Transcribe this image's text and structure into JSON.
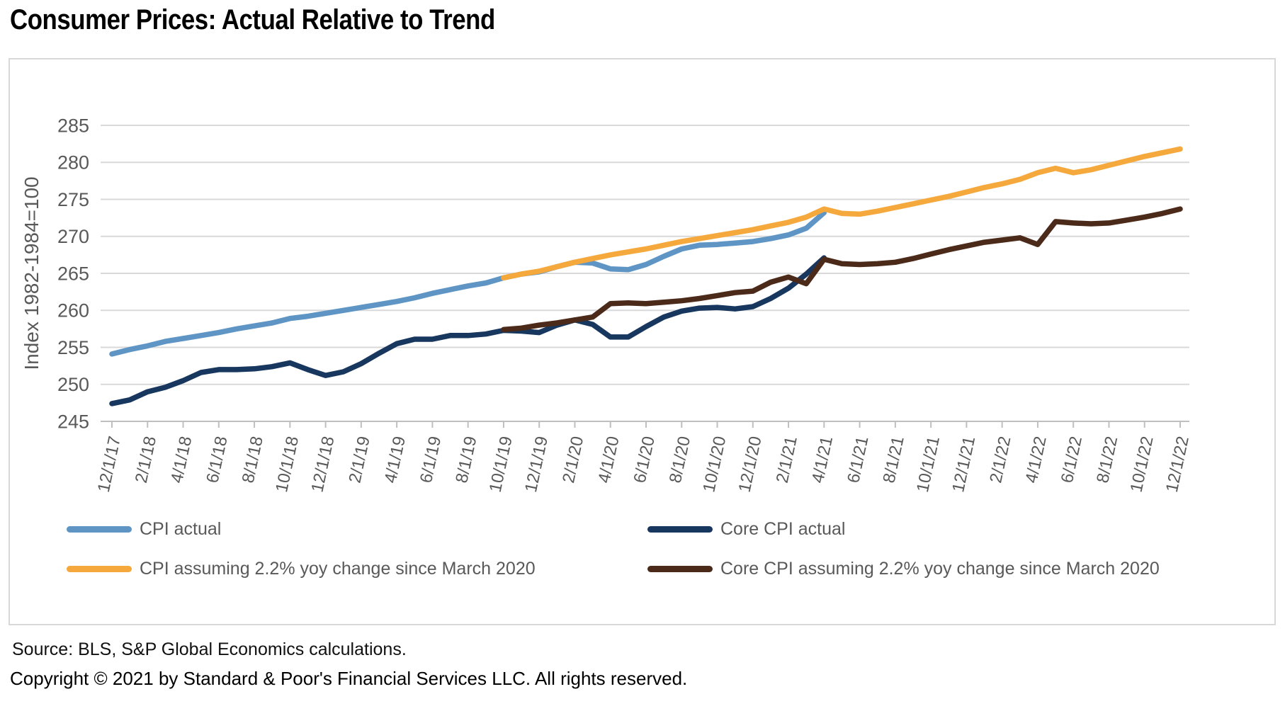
{
  "title": "Consumer Prices: Actual Relative to Trend",
  "footer": {
    "source": "Source: BLS, S&P Global Economics calculations.",
    "copyright": "Copyright © 2021 by Standard & Poor's Financial Services LLC. All rights reserved."
  },
  "colors": {
    "cpi_actual": "#5E95C5",
    "core_cpi_actual": "#17375E",
    "cpi_trend": "#F5A93D",
    "core_cpi_trend": "#4C2A19",
    "gridline": "#D9D9D9",
    "axis": "#BFBFBF",
    "axis_text": "#595959",
    "panel_border": "#D8D8D8"
  },
  "chart_data": {
    "type": "line",
    "title": "",
    "xlabel": "",
    "ylabel": "Index 1982-1984=100",
    "ylim": [
      245,
      285
    ],
    "ytick_step": 5,
    "yticks": [
      245,
      250,
      255,
      260,
      265,
      270,
      275,
      280,
      285
    ],
    "grid": true,
    "legend_position": "bottom",
    "months_total": 61,
    "x_frequency": "monthly, Dec 2017 - Dec 2022; labels every 2 months",
    "x_labels": [
      "12/1/17",
      "2/1/18",
      "4/1/18",
      "6/1/18",
      "8/1/18",
      "10/1/18",
      "12/1/18",
      "2/1/19",
      "4/1/19",
      "6/1/19",
      "8/1/19",
      "10/1/19",
      "12/1/19",
      "2/1/20",
      "4/1/20",
      "6/1/20",
      "8/1/20",
      "10/1/20",
      "12/1/20",
      "2/1/21",
      "4/1/21",
      "6/1/21",
      "8/1/21",
      "10/1/21",
      "12/1/21",
      "2/1/22",
      "4/1/22",
      "6/1/22",
      "8/1/22",
      "10/1/22",
      "12/1/22"
    ],
    "series": [
      {
        "id": "cpi-actual",
        "name": "CPI actual",
        "color": "#5E95C5",
        "start_month": 0,
        "values": [
          254.1,
          254.7,
          255.2,
          255.8,
          256.2,
          256.6,
          257.0,
          257.5,
          257.9,
          258.3,
          258.9,
          259.2,
          259.6,
          260.0,
          260.4,
          260.8,
          261.2,
          261.7,
          262.3,
          262.8,
          263.3,
          263.7,
          264.4,
          264.9,
          265.2,
          265.9,
          266.5,
          266.4,
          265.6,
          265.5,
          266.2,
          267.3,
          268.3,
          268.8,
          268.9,
          269.1,
          269.3,
          269.7,
          270.2,
          271.1,
          273.2
        ]
      },
      {
        "id": "core-cpi-actual",
        "name": "Core CPI actual",
        "color": "#17375E",
        "start_month": 0,
        "values": [
          247.4,
          247.9,
          249.0,
          249.6,
          250.5,
          251.6,
          252.0,
          252.0,
          252.1,
          252.4,
          252.9,
          252.0,
          251.2,
          251.7,
          252.8,
          254.2,
          255.5,
          256.1,
          256.1,
          256.6,
          256.6,
          256.8,
          257.3,
          257.2,
          257.0,
          258.0,
          258.7,
          258.1,
          256.4,
          256.4,
          257.8,
          259.1,
          259.9,
          260.3,
          260.4,
          260.2,
          260.5,
          261.6,
          263.0,
          264.9,
          267.1
        ]
      },
      {
        "id": "cpi-trend",
        "name": "CPI assuming 2.2% yoy change since March 2020",
        "color": "#F5A93D",
        "start_month": 22,
        "values": [
          264.4,
          264.9,
          265.3,
          265.9,
          266.5,
          267.0,
          267.5,
          267.9,
          268.3,
          268.8,
          269.3,
          269.7,
          270.1,
          270.5,
          270.9,
          271.4,
          271.9,
          272.6,
          273.7,
          273.1,
          273.0,
          273.4,
          273.9,
          274.4,
          274.9,
          275.4,
          276.0,
          276.6,
          277.1,
          277.7,
          278.6,
          279.2,
          278.6,
          279.0,
          279.6,
          280.2,
          280.8,
          281.3,
          281.8
        ]
      },
      {
        "id": "core-cpi-trend",
        "name": "Core CPI assuming 2.2% yoy change since March 2020",
        "color": "#4C2A19",
        "start_month": 22,
        "values": [
          257.4,
          257.6,
          258.0,
          258.3,
          258.7,
          259.1,
          260.9,
          261.0,
          260.9,
          261.1,
          261.3,
          261.6,
          262.0,
          262.4,
          262.6,
          263.8,
          264.5,
          263.6,
          266.9,
          266.3,
          266.2,
          266.3,
          266.5,
          267.0,
          267.6,
          268.2,
          268.7,
          269.2,
          269.5,
          269.8,
          268.9,
          272.0,
          271.8,
          271.7,
          271.8,
          272.2,
          272.6,
          273.1,
          273.7
        ]
      }
    ]
  }
}
